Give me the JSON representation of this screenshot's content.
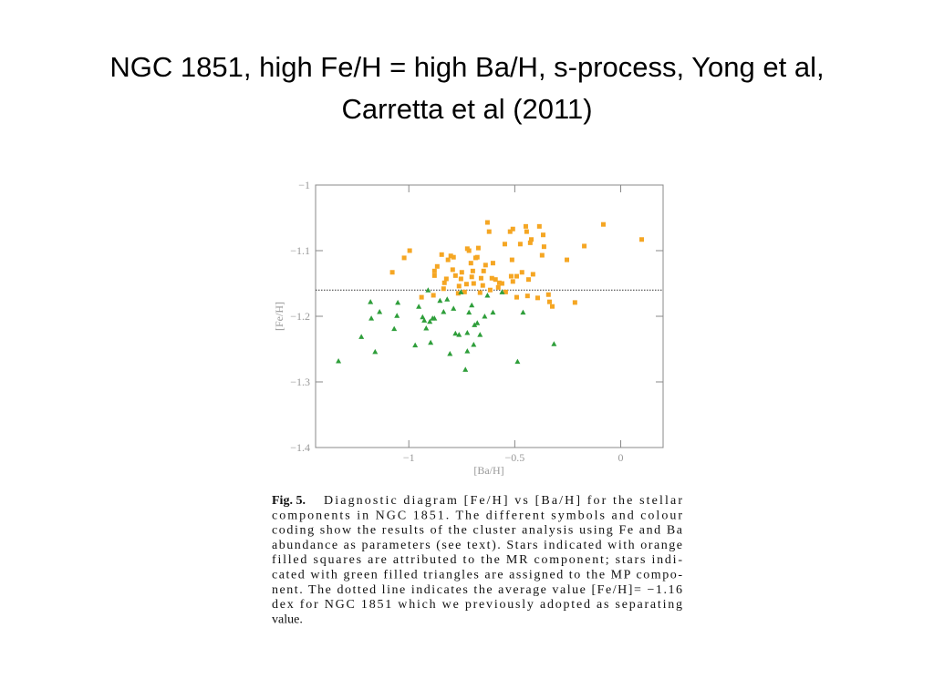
{
  "slide": {
    "title": [
      "NGC 1851, high Fe/H = high Ba/H, s-process, Yong et al,",
      "Carretta et al (2011)"
    ]
  },
  "chart_data": {
    "type": "scatter",
    "x_label": "[Ba/H]",
    "y_label": "[Fe/H]",
    "xlim": [
      -1.44,
      0.2
    ],
    "ylim": [
      -1.4,
      -1.0
    ],
    "xticks": [
      {
        "value": -1,
        "label": "−1"
      },
      {
        "value": -0.5,
        "label": "−0.5"
      },
      0
    ],
    "yticks": [
      {
        "value": -1,
        "label": "−1"
      },
      {
        "value": -1.1,
        "label": "−1.1"
      },
      {
        "value": -1.2,
        "label": "−1.2"
      },
      {
        "value": -1.3,
        "label": "−1.3"
      },
      {
        "value": -1.4,
        "label": "−1.4"
      }
    ],
    "hline": -1.16,
    "series": [
      {
        "color": "#f5a623",
        "marker": "square",
        "x": [
          -1.078,
          -1.022,
          -0.996,
          -0.94,
          -0.884,
          -0.879,
          -0.879,
          -0.866,
          -0.845,
          -0.836,
          -0.832,
          -0.823,
          -0.815,
          -0.802,
          -0.793,
          -0.789,
          -0.78,
          -0.767,
          -0.763,
          -0.754,
          -0.75,
          -0.737,
          -0.728,
          -0.724,
          -0.716,
          -0.707,
          -0.703,
          -0.698,
          -0.694,
          -0.685,
          -0.677,
          -0.672,
          -0.664,
          -0.659,
          -0.651,
          -0.647,
          -0.638,
          -0.629,
          -0.621,
          -0.616,
          -0.608,
          -0.603,
          -0.591,
          -0.578,
          -0.573,
          -0.56,
          -0.547,
          -0.543,
          -0.522,
          -0.517,
          -0.513,
          -0.509,
          -0.509,
          -0.491,
          -0.491,
          -0.474,
          -0.466,
          -0.448,
          -0.444,
          -0.44,
          -0.435,
          -0.427,
          -0.422,
          -0.414,
          -0.392,
          -0.384,
          -0.371,
          -0.366,
          -0.362,
          -0.341,
          -0.336,
          -0.323,
          -0.254,
          -0.216,
          -0.172,
          -0.082,
          0.099
        ],
        "values": [
          -1.133,
          -1.111,
          -1.1,
          -1.171,
          -1.168,
          -1.138,
          -1.131,
          -1.124,
          -1.106,
          -1.158,
          -1.149,
          -1.143,
          -1.114,
          -1.108,
          -1.129,
          -1.11,
          -1.138,
          -1.165,
          -1.154,
          -1.143,
          -1.133,
          -1.163,
          -1.151,
          -1.097,
          -1.1,
          -1.119,
          -1.14,
          -1.131,
          -1.15,
          -1.111,
          -1.11,
          -1.096,
          -1.164,
          -1.142,
          -1.153,
          -1.131,
          -1.122,
          -1.057,
          -1.071,
          -1.16,
          -1.142,
          -1.119,
          -1.144,
          -1.156,
          -1.149,
          -1.15,
          -1.09,
          -1.163,
          -1.071,
          -1.139,
          -1.114,
          -1.147,
          -1.067,
          -1.139,
          -1.171,
          -1.09,
          -1.133,
          -1.063,
          -1.071,
          -1.169,
          -1.144,
          -1.088,
          -1.083,
          -1.136,
          -1.172,
          -1.063,
          -1.107,
          -1.076,
          -1.094,
          -1.167,
          -1.178,
          -1.185,
          -1.114,
          -1.179,
          -1.093,
          -1.06,
          -1.083
        ]
      },
      {
        "color": "#2e9e3a",
        "marker": "triangle",
        "x": [
          -1.332,
          -1.224,
          -1.181,
          -1.177,
          -1.159,
          -1.138,
          -1.056,
          -1.052,
          -1.069,
          -0.97,
          -0.953,
          -0.935,
          -0.927,
          -0.918,
          -0.909,
          -0.901,
          -0.888,
          -0.879,
          -0.897,
          -0.853,
          -0.836,
          -0.819,
          -0.806,
          -0.789,
          -0.78,
          -0.763,
          -0.754,
          -0.733,
          -0.724,
          -0.724,
          -0.716,
          -0.703,
          -0.694,
          -0.69,
          -0.677,
          -0.664,
          -0.642,
          -0.629,
          -0.603,
          -0.56,
          -0.487,
          -0.461,
          -0.315
        ],
        "values": [
          -1.268,
          -1.231,
          -1.178,
          -1.203,
          -1.254,
          -1.193,
          -1.199,
          -1.179,
          -1.219,
          -1.244,
          -1.185,
          -1.201,
          -1.206,
          -1.218,
          -1.16,
          -1.208,
          -1.203,
          -1.203,
          -1.24,
          -1.176,
          -1.193,
          -1.174,
          -1.257,
          -1.188,
          -1.226,
          -1.228,
          -1.163,
          -1.281,
          -1.225,
          -1.253,
          -1.194,
          -1.183,
          -1.243,
          -1.213,
          -1.21,
          -1.228,
          -1.2,
          -1.168,
          -1.194,
          -1.163,
          -1.269,
          -1.194,
          -1.242
        ]
      }
    ],
    "caption": {
      "label": "Fig. 5.",
      "lines": [
        "Diagnostic diagram [Fe/H] vs [Ba/H] for the stellar",
        "components in NGC 1851. The different symbols and colour",
        "coding show the results of the cluster analysis using Fe and Ba",
        "abundance as parameters (see text). Stars indicated with orange",
        "filled squares are attributed to the MR component; stars indi-",
        "cated with green filled triangles are assigned to the MP compo-",
        "nent. The dotted line indicates the average value [Fe/H]= −1.16",
        "dex for NGC 1851 which we previously adopted as separating",
        "value."
      ]
    }
  }
}
